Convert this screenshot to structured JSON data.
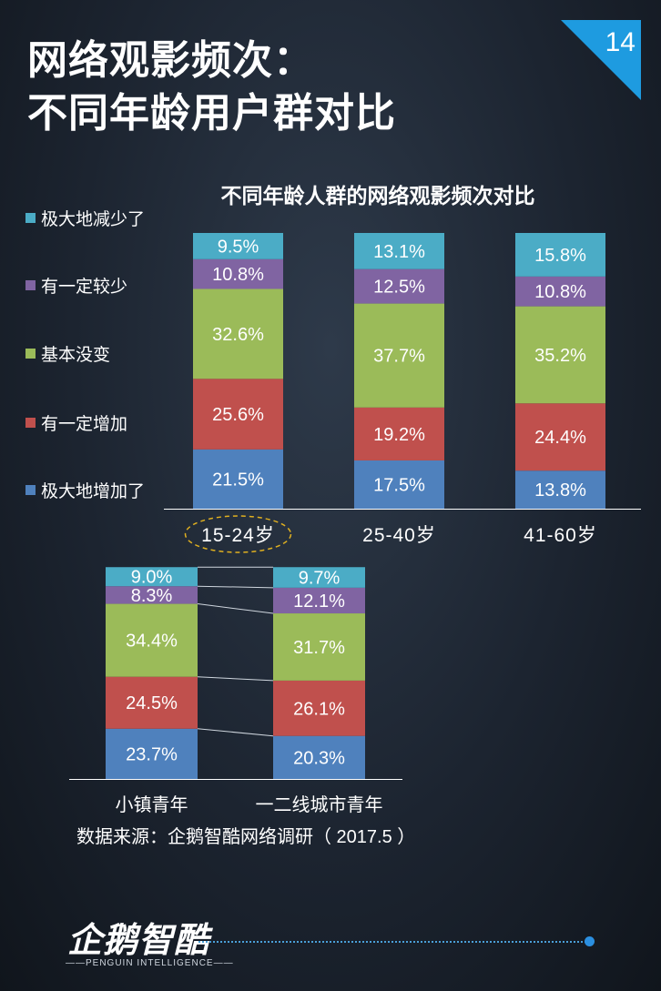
{
  "header": {
    "title_line1": "网络观影频次：",
    "title_line2": "不同年龄用户群对比",
    "page_number": "14"
  },
  "colors": {
    "极大地减少了": "#4bacc6",
    "有一定较少": "#8064a2",
    "基本没变": "#9bbb59",
    "有一定增加": "#c0504d",
    "极大地增加了": "#4f81bd"
  },
  "legend": [
    {
      "label": "极大地减少了",
      "color": "#4bacc6"
    },
    {
      "label": "有一定较少",
      "color": "#8064a2"
    },
    {
      "label": "基本没变",
      "color": "#9bbb59"
    },
    {
      "label": "有一定增加",
      "color": "#c0504d"
    },
    {
      "label": "极大地增加了",
      "color": "#4f81bd"
    }
  ],
  "chart_data": [
    {
      "type": "bar",
      "stacked": true,
      "title": "不同年龄人群的网络观影频次对比",
      "categories": [
        "15-24岁",
        "25-40岁",
        "41-60岁"
      ],
      "highlighted_category": "15-24岁",
      "series": [
        {
          "name": "极大地增加了",
          "values": [
            21.5,
            17.5,
            13.8
          ],
          "labels": [
            "21.5%",
            "17.5%",
            "13.8%"
          ]
        },
        {
          "name": "有一定增加",
          "values": [
            25.6,
            19.2,
            24.4
          ],
          "labels": [
            "25.6%",
            "19.2%",
            "24.4%"
          ]
        },
        {
          "name": "基本没变",
          "values": [
            32.6,
            37.7,
            35.2
          ],
          "labels": [
            "32.6%",
            "37.7%",
            "35.2%"
          ]
        },
        {
          "name": "有一定较少",
          "values": [
            10.8,
            12.5,
            10.8
          ],
          "labels": [
            "10.8%",
            "12.5%",
            "10.8%"
          ]
        },
        {
          "name": "极大地减少了",
          "values": [
            9.5,
            13.1,
            15.8
          ],
          "labels": [
            "9.5%",
            "13.1%",
            "15.8%"
          ]
        }
      ],
      "ylim": [
        0,
        100
      ]
    },
    {
      "type": "bar",
      "stacked": true,
      "categories": [
        "小镇青年",
        "一二线城市青年"
      ],
      "series": [
        {
          "name": "极大地增加了",
          "values": [
            23.7,
            20.3
          ],
          "labels": [
            "23.7%",
            "20.3%"
          ]
        },
        {
          "name": "有一定增加",
          "values": [
            24.5,
            26.1
          ],
          "labels": [
            "24.5%",
            "26.1%"
          ]
        },
        {
          "name": "基本没变",
          "values": [
            34.4,
            31.7
          ],
          "labels": [
            "34.4%",
            "31.7%"
          ]
        },
        {
          "name": "有一定较少",
          "values": [
            8.3,
            12.1
          ],
          "labels": [
            "8.3%",
            "12.1%"
          ]
        },
        {
          "name": "极大地减少了",
          "values": [
            9.0,
            9.7
          ],
          "labels": [
            "9.0%",
            "9.7%"
          ]
        }
      ],
      "connector_lines": true,
      "ylim": [
        0,
        100
      ]
    }
  ],
  "source": "数据来源：企鹅智酷网络调研（  2017.5 ）",
  "logo": {
    "name": "企鹅智酷",
    "subtitle": "PENGUIN INTELLIGENCE"
  }
}
